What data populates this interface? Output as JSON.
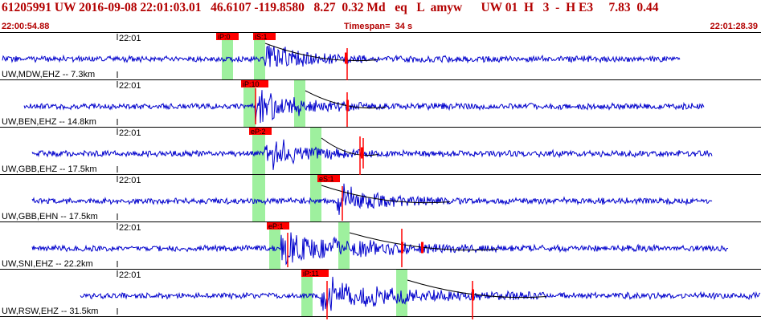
{
  "header": {
    "title": "61205991 UW 2016-09-08 22:01:03.01   46.6107 -119.8580   8.27  0.32 Md   eq   L  amyw      UW 01  H   3  -  H E3     7.83  0.44",
    "start_time": "22:00:54.88",
    "timespan": "Timespan=  34 s",
    "end_time": "22:01:28.39"
  },
  "colors": {
    "trace": "#0000cc",
    "pick": "#ff0000",
    "window": "#9ef09e",
    "header_text": "#b30000"
  },
  "channels": [
    {
      "label": "UW,MDW,EHZ -- 7.3km",
      "time_label": "22:01",
      "picks": [
        {
          "text": "iP:0"
        },
        {
          "text": "iS:1"
        }
      ]
    },
    {
      "label": "UW,BEN,EHZ -- 14.8km",
      "time_label": "22:01",
      "picks": [
        {
          "text": "iP:10"
        }
      ]
    },
    {
      "label": "UW,GBB,EHZ -- 17.5km",
      "time_label": "22:01",
      "picks": [
        {
          "text": "eP:2"
        }
      ]
    },
    {
      "label": "UW,GBB,EHN -- 17.5km",
      "time_label": "22:01",
      "picks": [
        {
          "text": "eS:1"
        }
      ]
    },
    {
      "label": "UW,SNI,EHZ -- 22.2km",
      "time_label": "22:01",
      "picks": [
        {
          "text": "eP:1"
        }
      ]
    },
    {
      "label": "UW,RSW,EHZ -- 31.5km",
      "time_label": "22:01",
      "picks": [
        {
          "text": "iP:11"
        }
      ]
    }
  ]
}
